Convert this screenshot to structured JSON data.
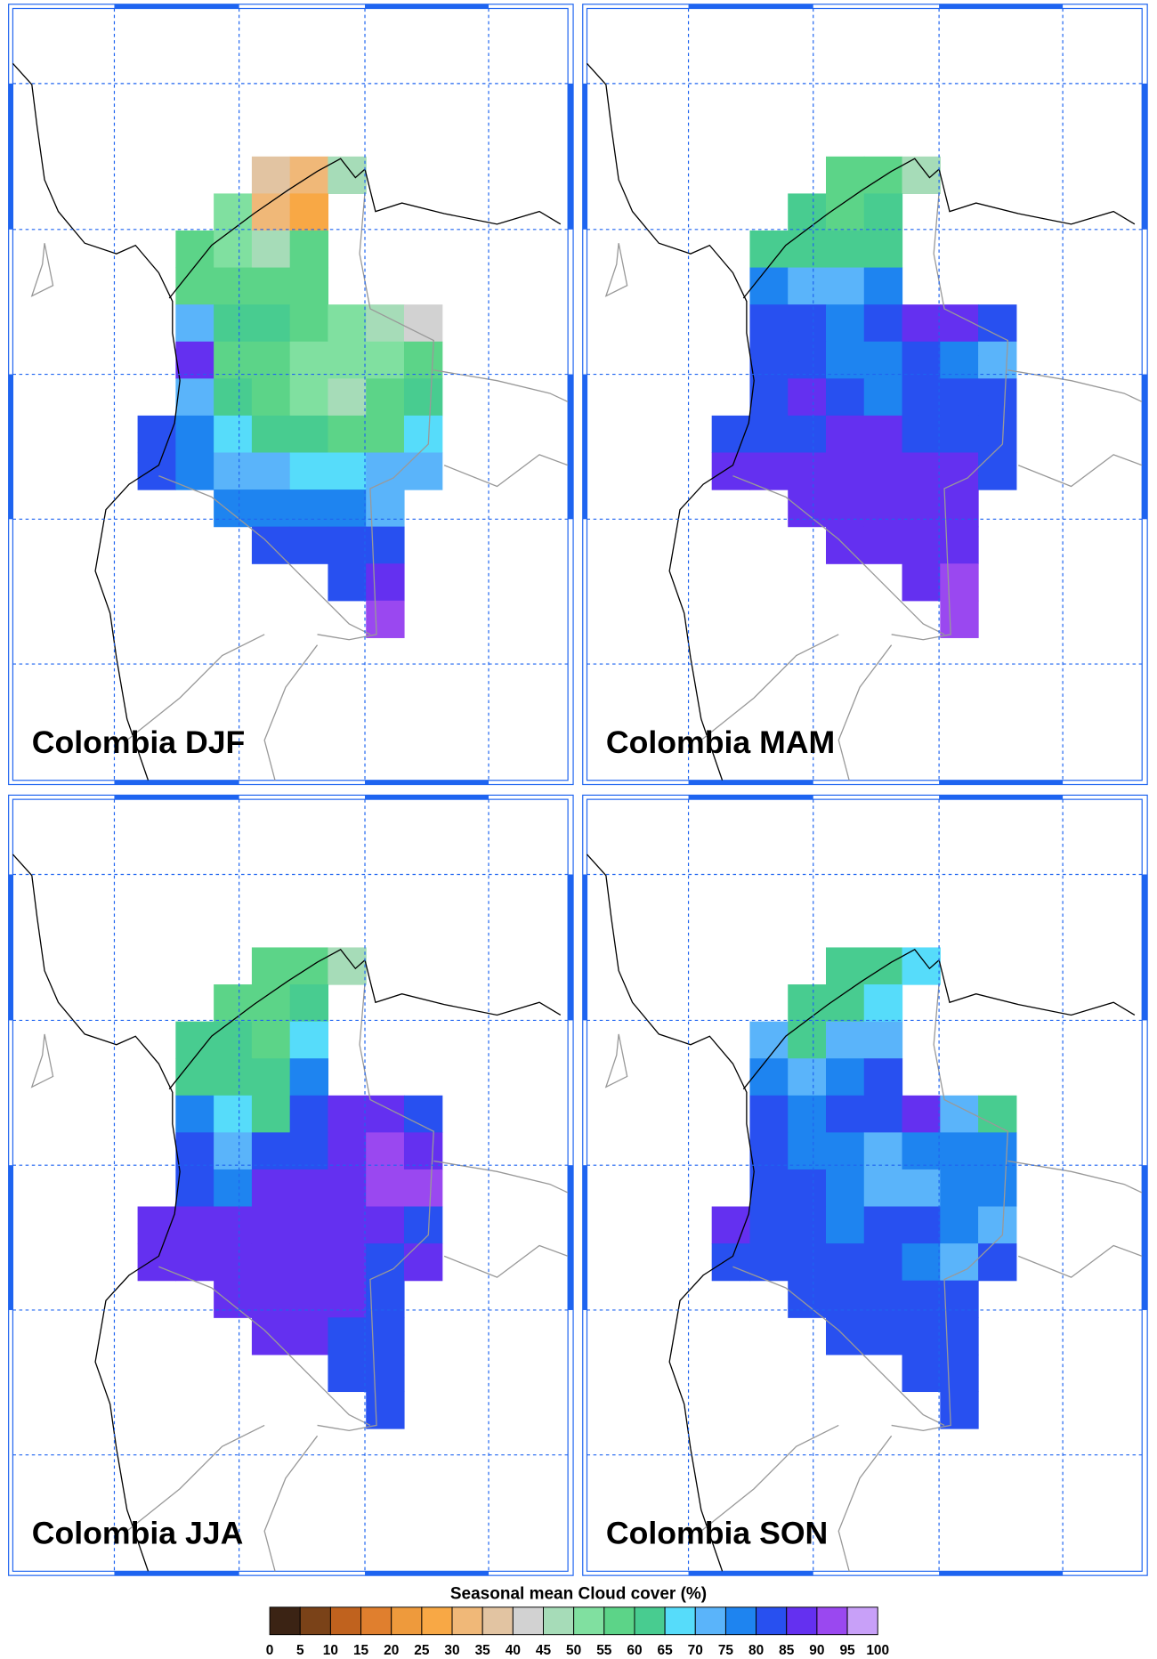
{
  "panels": [
    {
      "title": "Colombia DJF",
      "rows": [
        [
          null,
          null,
          null,
          35,
          30,
          45,
          null,
          null
        ],
        [
          null,
          null,
          50,
          30,
          25,
          null,
          null,
          null
        ],
        [
          null,
          55,
          50,
          45,
          55,
          null,
          null,
          null
        ],
        [
          null,
          55,
          55,
          55,
          55,
          null,
          null,
          null
        ],
        [
          null,
          70,
          60,
          60,
          55,
          50,
          45,
          40
        ],
        [
          null,
          85,
          55,
          55,
          50,
          50,
          50,
          55
        ],
        [
          null,
          70,
          60,
          55,
          50,
          45,
          55,
          60
        ],
        [
          80,
          75,
          65,
          60,
          60,
          55,
          55,
          65
        ],
        [
          80,
          75,
          70,
          70,
          65,
          65,
          70,
          70
        ],
        [
          null,
          null,
          75,
          75,
          75,
          75,
          70,
          null
        ],
        [
          null,
          null,
          null,
          80,
          80,
          80,
          80,
          null
        ],
        [
          null,
          null,
          null,
          null,
          null,
          80,
          85,
          null
        ],
        [
          null,
          null,
          null,
          null,
          null,
          null,
          90,
          null
        ]
      ]
    },
    {
      "title": "Colombia MAM",
      "rows": [
        [
          null,
          null,
          null,
          55,
          55,
          45,
          null,
          null
        ],
        [
          null,
          null,
          60,
          55,
          60,
          null,
          null,
          null
        ],
        [
          null,
          60,
          60,
          60,
          60,
          null,
          null,
          null
        ],
        [
          null,
          75,
          70,
          70,
          75,
          null,
          null,
          null
        ],
        [
          null,
          80,
          80,
          75,
          80,
          85,
          85,
          80
        ],
        [
          null,
          80,
          80,
          75,
          75,
          80,
          75,
          70
        ],
        [
          null,
          80,
          85,
          80,
          75,
          80,
          80,
          80
        ],
        [
          80,
          80,
          80,
          85,
          85,
          80,
          80,
          80
        ],
        [
          85,
          85,
          85,
          85,
          85,
          85,
          85,
          80
        ],
        [
          null,
          null,
          85,
          85,
          85,
          85,
          85,
          null
        ],
        [
          null,
          null,
          null,
          85,
          85,
          85,
          85,
          null
        ],
        [
          null,
          null,
          null,
          null,
          null,
          85,
          90,
          null
        ],
        [
          null,
          null,
          null,
          null,
          null,
          null,
          90,
          null
        ]
      ]
    },
    {
      "title": "Colombia JJA",
      "rows": [
        [
          null,
          null,
          null,
          55,
          55,
          45,
          null,
          null
        ],
        [
          null,
          null,
          55,
          55,
          60,
          null,
          null,
          null
        ],
        [
          null,
          60,
          60,
          55,
          65,
          null,
          null,
          null
        ],
        [
          null,
          60,
          60,
          60,
          75,
          null,
          null,
          null
        ],
        [
          null,
          75,
          65,
          60,
          80,
          85,
          85,
          80
        ],
        [
          null,
          80,
          70,
          80,
          80,
          85,
          90,
          85
        ],
        [
          null,
          80,
          75,
          85,
          85,
          85,
          90,
          90
        ],
        [
          85,
          85,
          85,
          85,
          85,
          85,
          85,
          80
        ],
        [
          85,
          85,
          85,
          85,
          85,
          85,
          80,
          85
        ],
        [
          null,
          null,
          85,
          85,
          85,
          85,
          80,
          null
        ],
        [
          null,
          null,
          null,
          85,
          85,
          80,
          80,
          null
        ],
        [
          null,
          null,
          null,
          null,
          null,
          80,
          80,
          null
        ],
        [
          null,
          null,
          null,
          null,
          null,
          null,
          80,
          null
        ]
      ]
    },
    {
      "title": "Colombia SON",
      "rows": [
        [
          null,
          null,
          null,
          60,
          60,
          65,
          null,
          null
        ],
        [
          null,
          null,
          60,
          60,
          65,
          null,
          null,
          null
        ],
        [
          null,
          70,
          60,
          70,
          70,
          null,
          null,
          null
        ],
        [
          null,
          75,
          70,
          75,
          80,
          null,
          null,
          null
        ],
        [
          null,
          80,
          75,
          80,
          80,
          85,
          70,
          60
        ],
        [
          null,
          80,
          75,
          75,
          70,
          75,
          75,
          75
        ],
        [
          null,
          80,
          80,
          75,
          70,
          70,
          75,
          75
        ],
        [
          85,
          80,
          80,
          75,
          80,
          80,
          75,
          70
        ],
        [
          80,
          80,
          80,
          80,
          80,
          75,
          70,
          80
        ],
        [
          null,
          null,
          80,
          80,
          80,
          80,
          80,
          null
        ],
        [
          null,
          null,
          null,
          80,
          80,
          80,
          80,
          null
        ],
        [
          null,
          null,
          null,
          null,
          null,
          80,
          80,
          null
        ],
        [
          null,
          null,
          null,
          null,
          null,
          null,
          80,
          null
        ]
      ]
    }
  ],
  "colorbar": {
    "title": "Seasonal mean Cloud cover (%)",
    "levels": [
      0,
      5,
      10,
      15,
      20,
      25,
      30,
      35,
      40,
      45,
      50,
      55,
      60,
      65,
      70,
      75,
      80,
      85,
      90,
      95,
      100
    ],
    "colors": [
      "#3b2314",
      "#7a4218",
      "#c0621e",
      "#e07f2e",
      "#ee9a3c",
      "#f8a845",
      "#f0b878",
      "#e2c4a2",
      "#d2d2d2",
      "#a6dcb8",
      "#80e0a0",
      "#5cd488",
      "#48cc90",
      "#56dcfa",
      "#5ab4fa",
      "#1e84f0",
      "#2850f0",
      "#6430f0",
      "#9a48f0",
      "#c8a0f8"
    ]
  }
}
